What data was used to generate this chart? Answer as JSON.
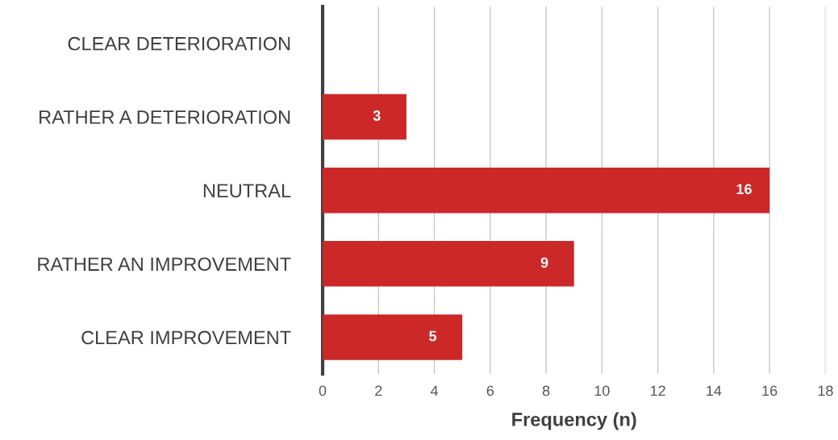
{
  "chart_data": {
    "type": "bar",
    "orientation": "horizontal",
    "xlabel": "Frequency (n)",
    "categories": [
      "CLEAR DETERIORATION",
      "RATHER A DETERIORATION",
      "NEUTRAL",
      "RATHER AN IMPROVEMENT",
      "CLEAR IMPROVEMENT"
    ],
    "values": [
      0,
      3,
      16,
      9,
      5
    ],
    "value_labels": [
      null,
      "3",
      "16",
      "9",
      "5"
    ],
    "color": "#cc2828",
    "xlim": [
      0,
      18
    ],
    "xticks": [
      0,
      2,
      4,
      6,
      8,
      10,
      12,
      14,
      16,
      18
    ],
    "grid": "x",
    "legend": false
  }
}
